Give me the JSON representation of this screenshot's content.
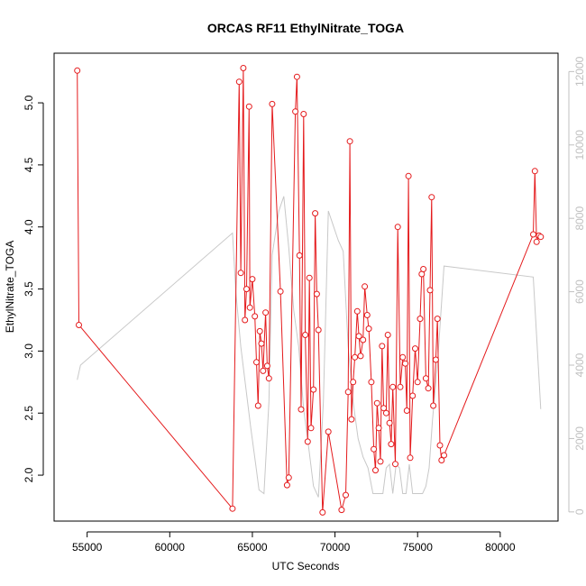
{
  "chart_data": {
    "type": "line",
    "title": "ORCAS RF11 EthylNitrate_TOGA",
    "xlabel": "UTC Seconds",
    "ylabel": "EthylNitrate_TOGA",
    "xlim": [
      53000,
      83500
    ],
    "ylim": [
      1.63,
      5.4
    ],
    "y2lim": [
      -250,
      12500
    ],
    "x_ticks": [
      55000,
      60000,
      65000,
      70000,
      75000,
      80000
    ],
    "y_ticks": [
      2.0,
      2.5,
      3.0,
      3.5,
      4.0,
      4.5,
      5.0
    ],
    "y2_ticks": [
      0,
      2000,
      4000,
      6000,
      8000,
      10000,
      12000
    ],
    "x_tick_labels": [
      "55000",
      "60000",
      "65000",
      "70000",
      "75000",
      "80000"
    ],
    "y_tick_labels": [
      "2.0",
      "2.5",
      "3.0",
      "3.5",
      "4.0",
      "4.5",
      "5.0"
    ],
    "y2_tick_labels": [
      "0",
      "2000",
      "4000",
      "6000",
      "8000",
      "10000",
      "12000"
    ],
    "series": [
      {
        "axis": "left",
        "color": "#e41a1c",
        "marker": "open-circle",
        "points": [
          [
            54400,
            5.26
          ],
          [
            54500,
            3.21
          ],
          [
            63800,
            1.73
          ],
          [
            64200,
            5.17
          ],
          [
            64300,
            3.63
          ],
          [
            64450,
            5.28
          ],
          [
            64550,
            3.25
          ],
          [
            64650,
            3.5
          ],
          [
            64800,
            4.97
          ],
          [
            64850,
            3.35
          ],
          [
            65000,
            3.58
          ],
          [
            65150,
            3.28
          ],
          [
            65250,
            2.91
          ],
          [
            65350,
            2.56
          ],
          [
            65450,
            3.16
          ],
          [
            65550,
            3.06
          ],
          [
            65650,
            2.84
          ],
          [
            65800,
            3.31
          ],
          [
            65900,
            2.88
          ],
          [
            66000,
            2.78
          ],
          [
            66200,
            4.99
          ],
          [
            66700,
            3.48
          ],
          [
            67100,
            1.92
          ],
          [
            67200,
            1.98
          ],
          [
            67600,
            4.93
          ],
          [
            67700,
            5.21
          ],
          [
            67850,
            3.77
          ],
          [
            67950,
            2.53
          ],
          [
            68100,
            4.91
          ],
          [
            68200,
            3.13
          ],
          [
            68350,
            2.27
          ],
          [
            68450,
            3.59
          ],
          [
            68550,
            2.38
          ],
          [
            68700,
            2.69
          ],
          [
            68800,
            4.11
          ],
          [
            68900,
            3.46
          ],
          [
            69000,
            3.17
          ],
          [
            69250,
            1.7
          ],
          [
            69600,
            2.35
          ],
          [
            70400,
            1.72
          ],
          [
            70650,
            1.84
          ],
          [
            70800,
            2.67
          ],
          [
            70900,
            4.69
          ],
          [
            71000,
            2.45
          ],
          [
            71100,
            2.75
          ],
          [
            71200,
            2.95
          ],
          [
            71350,
            3.32
          ],
          [
            71450,
            3.12
          ],
          [
            71550,
            2.96
          ],
          [
            71700,
            3.09
          ],
          [
            71800,
            3.52
          ],
          [
            71950,
            3.29
          ],
          [
            72050,
            3.18
          ],
          [
            72200,
            2.75
          ],
          [
            72350,
            2.21
          ],
          [
            72450,
            2.04
          ],
          [
            72550,
            2.58
          ],
          [
            72650,
            2.38
          ],
          [
            72750,
            2.11
          ],
          [
            72850,
            3.04
          ],
          [
            72950,
            2.54
          ],
          [
            73100,
            2.5
          ],
          [
            73200,
            3.13
          ],
          [
            73300,
            2.42
          ],
          [
            73400,
            2.25
          ],
          [
            73500,
            2.71
          ],
          [
            73650,
            2.09
          ],
          [
            73800,
            4.0
          ],
          [
            73950,
            2.71
          ],
          [
            74100,
            2.95
          ],
          [
            74250,
            2.9
          ],
          [
            74350,
            2.52
          ],
          [
            74450,
            4.41
          ],
          [
            74550,
            2.14
          ],
          [
            74700,
            2.64
          ],
          [
            74850,
            3.02
          ],
          [
            75000,
            2.75
          ],
          [
            75150,
            3.26
          ],
          [
            75250,
            3.62
          ],
          [
            75350,
            3.66
          ],
          [
            75500,
            2.78
          ],
          [
            75650,
            2.7
          ],
          [
            75750,
            3.49
          ],
          [
            75850,
            4.24
          ],
          [
            75950,
            2.56
          ],
          [
            76100,
            2.93
          ],
          [
            76200,
            3.26
          ],
          [
            76350,
            2.24
          ],
          [
            76450,
            2.12
          ],
          [
            76600,
            2.16
          ],
          [
            82000,
            3.94
          ],
          [
            82100,
            4.45
          ],
          [
            82200,
            3.88
          ],
          [
            82350,
            3.93
          ],
          [
            82450,
            3.92
          ]
        ]
      },
      {
        "axis": "right",
        "color": "#c8c8c8",
        "marker": "none",
        "points": [
          [
            54400,
            3600
          ],
          [
            54600,
            4000
          ],
          [
            63800,
            7600
          ],
          [
            64000,
            6000
          ],
          [
            64300,
            4500
          ],
          [
            64600,
            3400
          ],
          [
            64900,
            2300
          ],
          [
            65200,
            1300
          ],
          [
            65400,
            600
          ],
          [
            65700,
            500
          ],
          [
            66000,
            3000
          ],
          [
            66200,
            7000
          ],
          [
            66600,
            8200
          ],
          [
            66900,
            8600
          ],
          [
            67200,
            7200
          ],
          [
            67500,
            5500
          ],
          [
            67800,
            4500
          ],
          [
            68100,
            2800
          ],
          [
            68400,
            1800
          ],
          [
            68700,
            700
          ],
          [
            69000,
            400
          ],
          [
            69300,
            3000
          ],
          [
            69600,
            8200
          ],
          [
            69900,
            7800
          ],
          [
            70200,
            7400
          ],
          [
            70500,
            7100
          ],
          [
            70800,
            4500
          ],
          [
            71100,
            3000
          ],
          [
            71400,
            2000
          ],
          [
            71700,
            1500
          ],
          [
            72000,
            1200
          ],
          [
            72300,
            500
          ],
          [
            72500,
            500
          ],
          [
            72700,
            500
          ],
          [
            72900,
            500
          ],
          [
            73100,
            1200
          ],
          [
            73300,
            1300
          ],
          [
            73500,
            500
          ],
          [
            73700,
            1300
          ],
          [
            73900,
            1200
          ],
          [
            74100,
            500
          ],
          [
            74300,
            500
          ],
          [
            74500,
            1300
          ],
          [
            74700,
            500
          ],
          [
            74900,
            500
          ],
          [
            75100,
            500
          ],
          [
            75300,
            500
          ],
          [
            75500,
            700
          ],
          [
            75700,
            1200
          ],
          [
            75900,
            2500
          ],
          [
            76200,
            4000
          ],
          [
            76600,
            6700
          ],
          [
            82000,
            6400
          ],
          [
            82200,
            4800
          ],
          [
            82450,
            2800
          ]
        ]
      }
    ]
  }
}
